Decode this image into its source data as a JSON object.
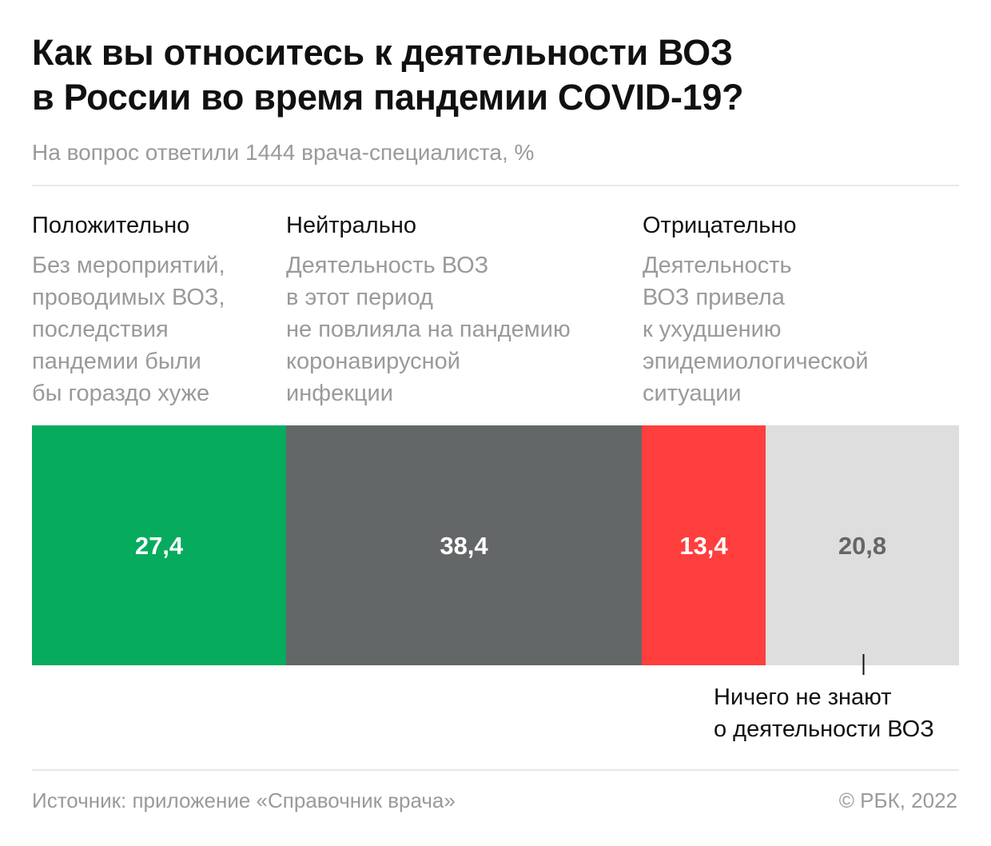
{
  "title": {
    "line1": "Как вы относитесь к деятельности ВОЗ",
    "line2": "в России во время пандемии COVID-19?"
  },
  "subtitle": "На вопрос ответили 1444 врача-специалиста, %",
  "columns": [
    {
      "head": "Положительно",
      "desc": [
        "Без мероприятий,",
        "проводимых ВОЗ,",
        "последствия",
        "пандемии были",
        "бы гораздо хуже"
      ]
    },
    {
      "head": "Нейтрально",
      "desc": [
        "Деятельность ВОЗ",
        "в этот период",
        "не повлияла на пандемию",
        "коронавирусной",
        "инфекции"
      ]
    },
    {
      "head": "Отрицательно",
      "desc": [
        "Деятельность",
        "ВОЗ привела",
        "к ухудшению",
        "эпидемиологической",
        "ситуации"
      ]
    }
  ],
  "annotation": {
    "line1": "Ничего не знают",
    "line2": "о деятельности ВОЗ"
  },
  "source": "Источник: приложение «Справочник врача»",
  "copyright": "© РБК, 2022",
  "chart_data": {
    "type": "bar",
    "orientation": "horizontal-stacked-100",
    "categories": [
      "Положительно",
      "Нейтрально",
      "Отрицательно",
      "Ничего не знают о деятельности ВОЗ"
    ],
    "values": [
      27.4,
      38.4,
      13.4,
      20.8
    ],
    "labels": [
      "27,4",
      "38,4",
      "13,4",
      "20,8"
    ],
    "colors": [
      "#06ab5e",
      "#636767",
      "#ff3e3e",
      "#dedede"
    ],
    "label_colors": [
      "#ffffff",
      "#ffffff",
      "#ffffff",
      "#666666"
    ],
    "total": 100
  }
}
